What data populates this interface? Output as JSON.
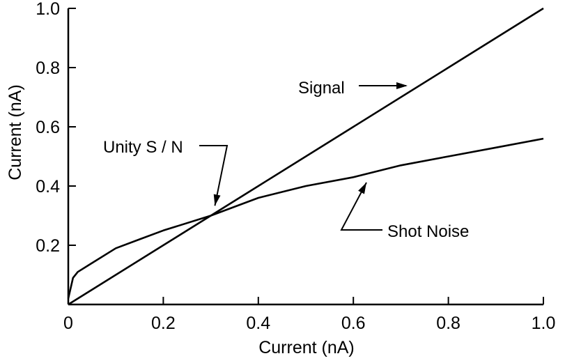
{
  "chart_data": {
    "type": "line",
    "title": "",
    "xlabel": "Current (nA)",
    "ylabel": "Current (nA)",
    "xlim": [
      0,
      1.0
    ],
    "ylim": [
      0,
      1.0
    ],
    "x_ticks": [
      0,
      0.2,
      0.4,
      0.6,
      0.8,
      1.0
    ],
    "x_tick_labels": [
      "0",
      "0.2",
      "0.4",
      "0.6",
      "0.8",
      "1.0"
    ],
    "y_ticks": [
      0.2,
      0.4,
      0.6,
      0.8,
      1.0
    ],
    "y_tick_labels": [
      "0.2",
      "0.4",
      "0.6",
      "0.8",
      "1.0"
    ],
    "grid": false,
    "legend": "none",
    "series": [
      {
        "name": "Signal",
        "x": [
          0,
          0.2,
          0.4,
          0.6,
          0.8,
          1.0
        ],
        "y": [
          0,
          0.2,
          0.4,
          0.6,
          0.8,
          1.0
        ]
      },
      {
        "name": "Shot Noise",
        "x": [
          0,
          0.01,
          0.02,
          0.05,
          0.1,
          0.15,
          0.2,
          0.3,
          0.4,
          0.5,
          0.6,
          0.7,
          0.8,
          0.9,
          1.0
        ],
        "y": [
          0.02,
          0.09,
          0.11,
          0.14,
          0.19,
          0.22,
          0.25,
          0.3,
          0.36,
          0.4,
          0.43,
          0.47,
          0.5,
          0.53,
          0.56
        ]
      }
    ],
    "annotations": [
      {
        "text": "Signal",
        "points_to": [
          0.7,
          0.72
        ]
      },
      {
        "text": "Unity S / N",
        "points_to": [
          0.31,
          0.31
        ]
      },
      {
        "text": "Shot Noise",
        "points_to": [
          0.63,
          0.44
        ]
      }
    ]
  }
}
